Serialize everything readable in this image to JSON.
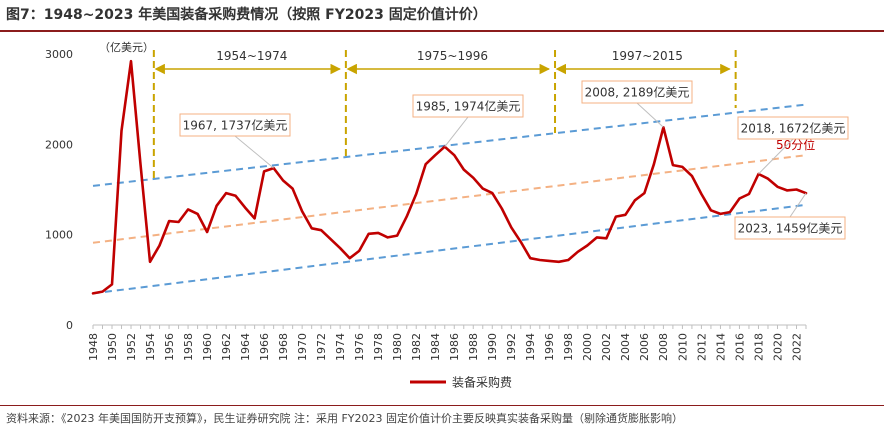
{
  "title": "图7：1948~2023 年美国装备采购费情况（按照 FY2023  固定价值计价）",
  "source_note": "资料来源：《2023 年美国国防开支预算》，民生证券研究院    注：采用 FY2023  固定价值计价主要反映真实装备采购量（剔除通货膨胀影响）",
  "colors": {
    "series": "#c00000",
    "upper_trend": "#5b9bd5",
    "lower_trend": "#5b9bd5",
    "median_trend": "#f4b183",
    "period_marker": "#c9a400",
    "callout_border": "#f4b183",
    "median_label": "#c00000"
  },
  "chart_data": {
    "type": "line",
    "title": "",
    "unit_label": "（亿美元）",
    "xlabel": "",
    "ylabel": "",
    "ylim": [
      0,
      3000
    ],
    "yticks": [
      0,
      1000,
      2000,
      3000
    ],
    "xlim": [
      1948,
      2023
    ],
    "xticks": [
      1948,
      1950,
      1952,
      1954,
      1956,
      1958,
      1960,
      1962,
      1964,
      1966,
      1968,
      1970,
      1972,
      1974,
      1976,
      1978,
      1980,
      1982,
      1984,
      1986,
      1988,
      1990,
      1992,
      1994,
      1996,
      1998,
      2000,
      2002,
      2004,
      2006,
      2008,
      2010,
      2012,
      2014,
      2016,
      2018,
      2020,
      2022
    ],
    "legend": {
      "position": "bottom-center",
      "label": "装备采购费"
    },
    "series": [
      {
        "name": "装备采购费",
        "x": [
          1948,
          1949,
          1950,
          1951,
          1952,
          1953,
          1954,
          1955,
          1956,
          1957,
          1958,
          1959,
          1960,
          1961,
          1962,
          1963,
          1964,
          1965,
          1966,
          1967,
          1968,
          1969,
          1970,
          1971,
          1972,
          1973,
          1974,
          1975,
          1976,
          1977,
          1978,
          1979,
          1980,
          1981,
          1982,
          1983,
          1984,
          1985,
          1986,
          1987,
          1988,
          1989,
          1990,
          1991,
          1992,
          1993,
          1994,
          1995,
          1996,
          1997,
          1998,
          1999,
          2000,
          2001,
          2002,
          2003,
          2004,
          2005,
          2006,
          2007,
          2008,
          2009,
          2010,
          2011,
          2012,
          2013,
          2014,
          2015,
          2016,
          2017,
          2018,
          2019,
          2020,
          2021,
          2022,
          2023
        ],
        "values": [
          350,
          370,
          450,
          2150,
          2920,
          1780,
          700,
          880,
          1150,
          1140,
          1280,
          1230,
          1030,
          1320,
          1460,
          1430,
          1300,
          1180,
          1700,
          1737,
          1600,
          1510,
          1260,
          1070,
          1050,
          950,
          850,
          740,
          820,
          1010,
          1020,
          970,
          990,
          1200,
          1450,
          1780,
          1880,
          1974,
          1880,
          1720,
          1630,
          1510,
          1460,
          1290,
          1080,
          920,
          740,
          720,
          710,
          700,
          720,
          810,
          880,
          970,
          960,
          1200,
          1220,
          1380,
          1460,
          1780,
          2189,
          1770,
          1750,
          1650,
          1450,
          1270,
          1230,
          1250,
          1400,
          1450,
          1672,
          1620,
          1530,
          1490,
          1500,
          1459
        ]
      }
    ],
    "trendlines": [
      {
        "name": "upper",
        "x": [
          1948,
          2023
        ],
        "values": [
          1540,
          2440
        ]
      },
      {
        "name": "median",
        "x": [
          1948,
          2023
        ],
        "values": [
          910,
          1880
        ]
      },
      {
        "name": "lower",
        "x": [
          1948,
          2023
        ],
        "values": [
          350,
          1330
        ]
      }
    ],
    "periods": [
      {
        "label": "1954~1974",
        "start": 1954.4,
        "end": 1974.6
      },
      {
        "label": "1975~1996",
        "start": 1974.6,
        "end": 1996.6
      },
      {
        "label": "1997~2015",
        "start": 1996.6,
        "end": 2015.6
      }
    ],
    "period_dividers": [
      1954.4,
      1974.6,
      1996.6,
      2015.6
    ],
    "annotations": [
      {
        "text": "1967, 1737亿美元",
        "x": 1967,
        "y": 1737
      },
      {
        "text": "1985, 1974亿美元",
        "x": 1985,
        "y": 1974
      },
      {
        "text": "2008, 2189亿美元",
        "x": 2008,
        "y": 2189
      },
      {
        "text": "2018, 1672亿美元",
        "x": 2018,
        "y": 1672
      },
      {
        "text": "2023, 1459亿美元",
        "x": 2023,
        "y": 1459
      }
    ],
    "median_label": "50分位"
  }
}
